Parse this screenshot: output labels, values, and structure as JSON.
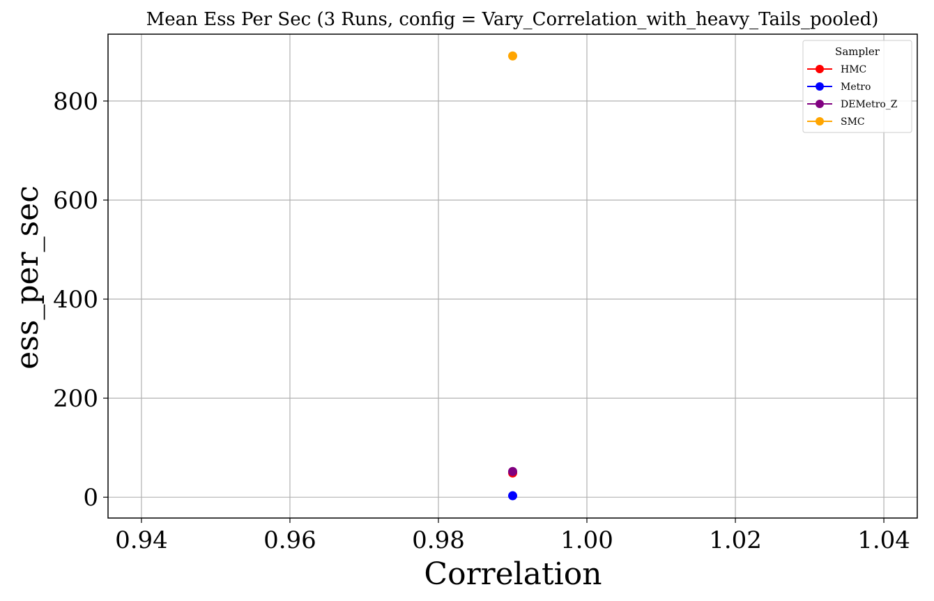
{
  "chart_data": {
    "type": "scatter",
    "title": "Mean Ess Per Sec (3 Runs, config = Vary_Correlation_with_heavy_Tails_pooled)",
    "xlabel": "Correlation",
    "ylabel": "ess_per_sec",
    "xlim": [
      0.9355,
      1.0445
    ],
    "ylim": [
      -42,
      935
    ],
    "xticks": [
      0.94,
      0.96,
      0.98,
      1.0,
      1.02,
      1.04
    ],
    "xtick_labels": [
      "0.94",
      "0.96",
      "0.98",
      "1.00",
      "1.02",
      "1.04"
    ],
    "yticks": [
      0,
      200,
      400,
      600,
      800
    ],
    "ytick_labels": [
      "0",
      "200",
      "400",
      "600",
      "800"
    ],
    "grid": true,
    "legend": {
      "title": "Sampler",
      "position": "top-right"
    },
    "series": [
      {
        "name": "HMC",
        "color": "#ff0000",
        "points": [
          {
            "x": 0.99,
            "y": 49
          }
        ]
      },
      {
        "name": "Metro",
        "color": "#0000ff",
        "points": [
          {
            "x": 0.99,
            "y": 3
          }
        ]
      },
      {
        "name": "DEMetro_Z",
        "color": "#800080",
        "points": [
          {
            "x": 0.99,
            "y": 52
          }
        ]
      },
      {
        "name": "SMC",
        "color": "#ffa500",
        "points": [
          {
            "x": 0.99,
            "y": 891
          }
        ]
      }
    ]
  }
}
